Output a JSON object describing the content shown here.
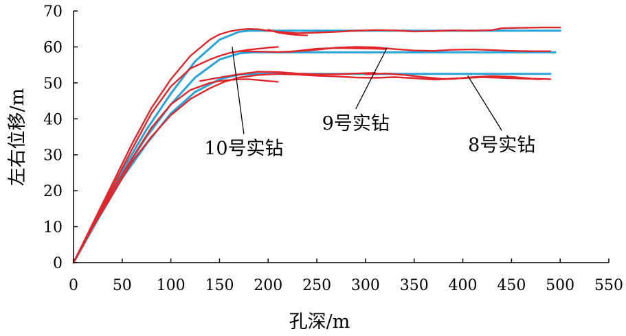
{
  "chart_data": {
    "type": "line",
    "title": "",
    "xlabel": "孔深/m",
    "ylabel": "左右位移/m",
    "xlim": [
      0,
      550
    ],
    "ylim": [
      0,
      70
    ],
    "xticks": [
      0,
      50,
      100,
      150,
      200,
      250,
      300,
      350,
      400,
      450,
      500,
      550
    ],
    "yticks": [
      0,
      10,
      20,
      30,
      40,
      50,
      60,
      70
    ],
    "grid": false,
    "legend": "none",
    "colors": {
      "design": "#27a4d8",
      "actual": "#e0262b",
      "axis": "#000000"
    },
    "series": [
      {
        "kind": "design",
        "x": [
          0,
          25,
          50,
          75,
          100,
          125,
          150,
          170,
          180,
          500
        ],
        "y": [
          0,
          13,
          25.5,
          37,
          47,
          56,
          62,
          64.2,
          64.5,
          64.5
        ]
      },
      {
        "kind": "design",
        "x": [
          0,
          25,
          50,
          75,
          100,
          125,
          150,
          170,
          185,
          495
        ],
        "y": [
          0,
          12.5,
          24.5,
          35,
          44,
          51.5,
          56.5,
          58.2,
          58.5,
          58.5
        ]
      },
      {
        "kind": "design",
        "x": [
          0,
          25,
          50,
          75,
          100,
          125,
          150,
          170,
          185,
          490
        ],
        "y": [
          0,
          12,
          23.5,
          33,
          41.5,
          47.5,
          51,
          52.3,
          52.5,
          52.5
        ]
      },
      {
        "kind": "actual",
        "x": [
          0,
          20,
          40,
          60,
          80,
          100,
          120,
          140,
          150,
          160,
          170,
          180,
          190,
          200,
          215,
          230,
          250,
          270,
          290,
          310,
          330,
          350,
          370,
          390,
          410,
          430,
          440,
          460,
          480,
          500
        ],
        "y": [
          0,
          11,
          22,
          33,
          43,
          51,
          57.5,
          62,
          63.5,
          64.3,
          64.8,
          65,
          64.9,
          64.5,
          64.1,
          63.8,
          64,
          64.2,
          64.5,
          64.7,
          64.6,
          64.3,
          64.4,
          64.6,
          64.5,
          64.7,
          65.2,
          65.3,
          65.4,
          65.4
        ]
      },
      {
        "kind": "actual",
        "x": [
          200,
          210,
          220,
          230,
          240
        ],
        "y": [
          64.8,
          64,
          63.6,
          63.3,
          63.2
        ]
      },
      {
        "kind": "actual",
        "x": [
          0,
          20,
          40,
          60,
          80,
          100,
          120,
          140,
          150,
          160,
          170,
          180,
          190,
          200,
          210
        ],
        "y": [
          0,
          10.5,
          21,
          31.5,
          41.5,
          49,
          54,
          56.5,
          57.5,
          58.3,
          58.8,
          59.2,
          59.5,
          59.8,
          60
        ]
      },
      {
        "kind": "actual",
        "x": [
          170,
          190,
          210,
          230,
          250,
          270,
          290,
          310,
          330,
          350,
          370,
          390,
          410,
          430,
          450,
          470,
          490
        ],
        "y": [
          58.8,
          58.7,
          58.6,
          58.8,
          59.2,
          59.8,
          60,
          59.9,
          59.4,
          59,
          58.9,
          59.2,
          59.3,
          59.1,
          58.9,
          58.8,
          58.8
        ]
      },
      {
        "kind": "actual",
        "x": [
          220,
          250,
          270,
          290,
          310,
          320
        ],
        "y": [
          58.6,
          59.5,
          59.7,
          59.6,
          59.5,
          59.4
        ]
      },
      {
        "kind": "actual",
        "x": [
          0,
          20,
          40,
          60,
          80,
          100,
          120,
          140,
          150,
          160,
          170,
          180,
          190,
          200,
          210
        ],
        "y": [
          0,
          10,
          20,
          29,
          37.5,
          44,
          48,
          50,
          50.5,
          50.8,
          51,
          51,
          50.8,
          50.5,
          50.3
        ]
      },
      {
        "kind": "actual",
        "x": [
          0,
          20,
          40,
          60,
          80,
          100,
          120,
          140,
          155,
          170,
          190,
          210,
          230,
          250,
          270,
          290,
          310,
          330,
          350,
          370,
          390,
          410,
          430,
          450,
          470,
          490
        ],
        "y": [
          0,
          10,
          19,
          28,
          35,
          41,
          45.5,
          48.5,
          50.3,
          51.5,
          52.2,
          52.5,
          52.3,
          52,
          51.8,
          51.5,
          51.4,
          51.6,
          51.3,
          50.9,
          51.1,
          51.6,
          51.9,
          51.7,
          51.2,
          51
        ]
      },
      {
        "kind": "actual",
        "x": [
          130,
          150,
          170,
          190,
          210,
          230,
          250,
          270,
          290,
          310
        ],
        "y": [
          50.5,
          51.5,
          52.4,
          53.1,
          53,
          52.6,
          52.4,
          52.4,
          52.6,
          52.8
        ]
      },
      {
        "kind": "actual",
        "x": [
          300,
          320,
          340,
          360,
          380,
          400,
          420,
          440,
          460,
          480
        ],
        "y": [
          52.4,
          52.6,
          52.2,
          51.6,
          51.1,
          51.3,
          51.6,
          51.4,
          51.2,
          51
        ]
      }
    ],
    "annotations": [
      {
        "text": "10号实钻",
        "target": [
          163,
          60
        ],
        "label_at": [
          175,
          35
        ]
      },
      {
        "text": "9号实钻",
        "target": [
          322,
          59.7
        ],
        "label_at": [
          290,
          42
        ]
      },
      {
        "text": "8号实钻",
        "target": [
          405,
          52
        ],
        "label_at": [
          440,
          36
        ]
      }
    ]
  }
}
